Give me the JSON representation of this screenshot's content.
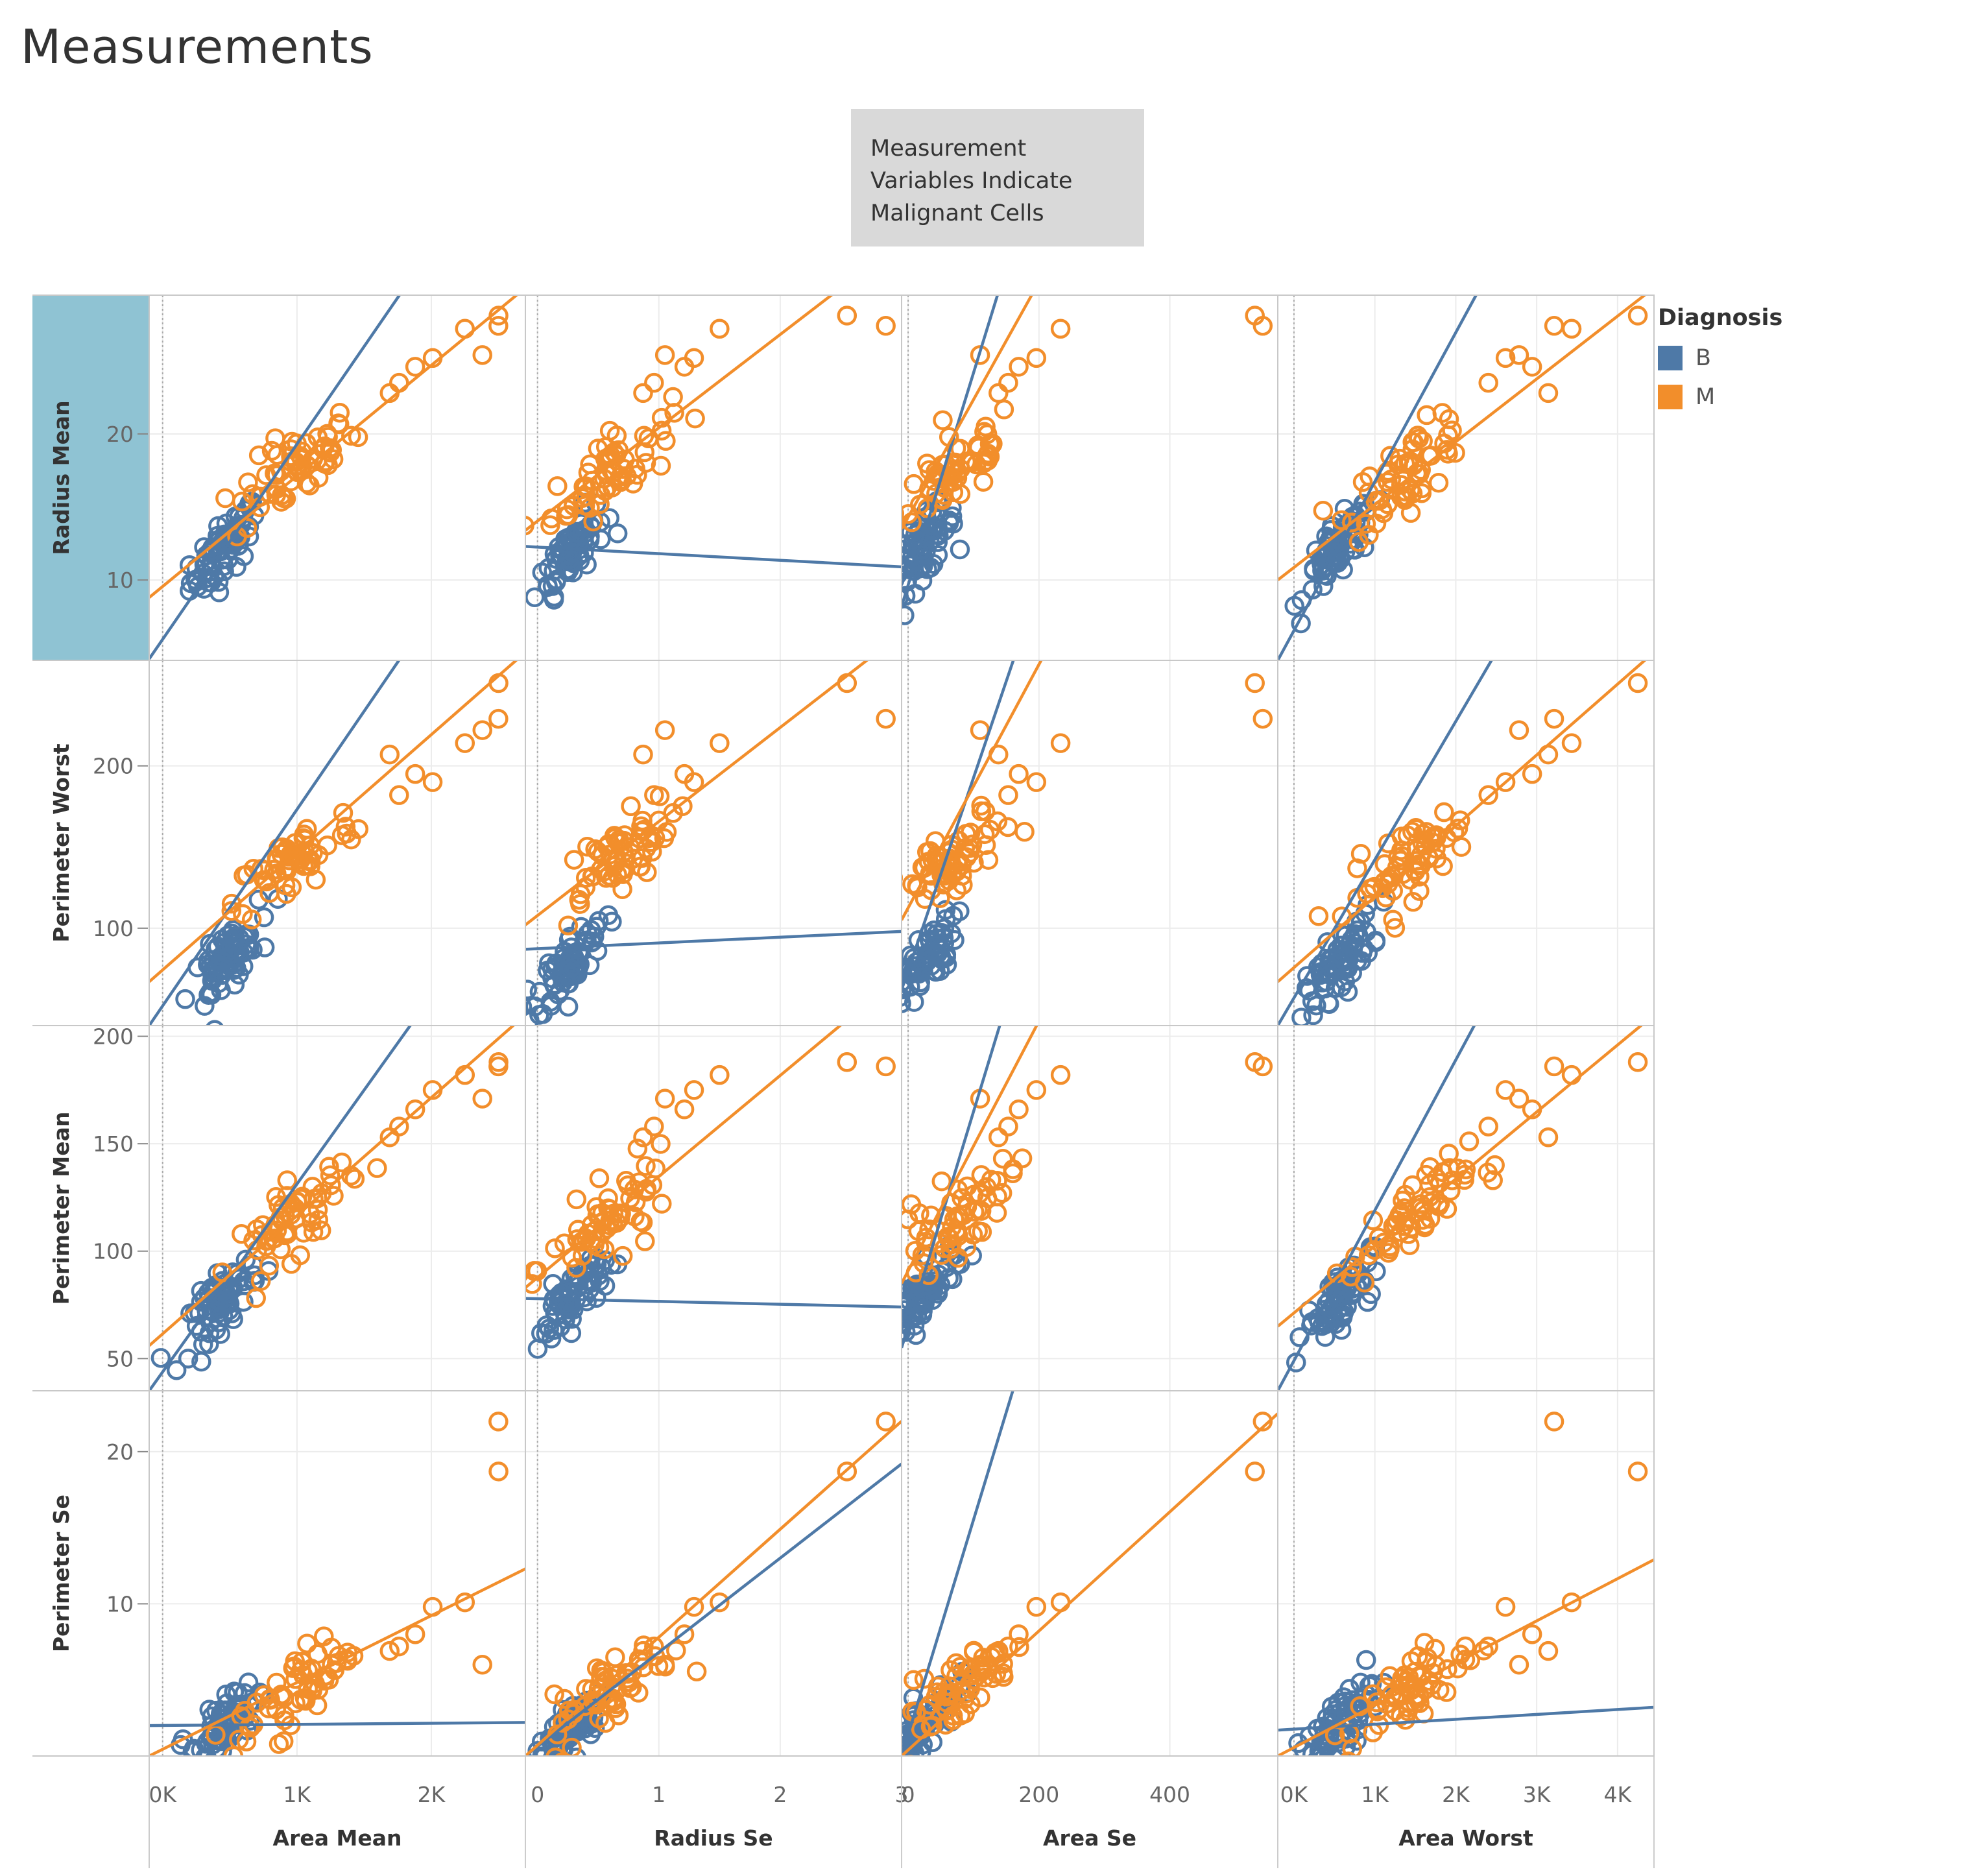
{
  "page": {
    "title": "Measurements"
  },
  "annotation": {
    "text_lines": [
      "Measurement",
      "Variables Indicate",
      "Malignant Cells"
    ]
  },
  "legend": {
    "title": "Diagnosis",
    "items": [
      {
        "label": "B",
        "color": "#4e79a7"
      },
      {
        "label": "M",
        "color": "#f28e2b"
      }
    ]
  },
  "colors": {
    "B": "#4e79a7",
    "M": "#f28e2b",
    "row_header_highlight": "#8fc3d3"
  },
  "chart_data": {
    "type": "scatter",
    "columns": [
      {
        "label": "Area Mean",
        "range": [
          -100,
          2700
        ],
        "ticks": [
          0,
          1000,
          2000
        ],
        "tick_labels": [
          "0K",
          "1K",
          "2K"
        ],
        "zero_line": 0
      },
      {
        "label": "Radius Se",
        "range": [
          -0.1,
          3.0
        ],
        "ticks": [
          0,
          1,
          2,
          3
        ],
        "tick_labels": [
          "0",
          "1",
          "2",
          "3"
        ],
        "zero_line": 0
      },
      {
        "label": "Area Se",
        "range": [
          -10,
          565
        ],
        "ticks": [
          0,
          200,
          400
        ],
        "tick_labels": [
          "0",
          "200",
          "400"
        ],
        "zero_line": 0
      },
      {
        "label": "Area Worst",
        "range": [
          -200,
          4450
        ],
        "ticks": [
          0,
          1000,
          2000,
          3000,
          4000
        ],
        "tick_labels": [
          "0K",
          "1K",
          "2K",
          "3K",
          "4K"
        ],
        "zero_line": 0
      }
    ],
    "rows": [
      {
        "label": "Radius Mean",
        "range": [
          4.5,
          29.5
        ],
        "ticks": [
          10,
          20
        ],
        "tick_labels": [
          "10",
          "20"
        ],
        "highlighted": true
      },
      {
        "label": "Perimeter Worst",
        "range": [
          40,
          265
        ],
        "ticks": [
          100,
          200
        ],
        "tick_labels": [
          "100",
          "200"
        ]
      },
      {
        "label": "Perimeter Mean",
        "range": [
          35,
          205
        ],
        "ticks": [
          50,
          100,
          150,
          200
        ],
        "tick_labels": [
          "50",
          "100",
          "150",
          "200"
        ]
      },
      {
        "label": "Perimeter Se",
        "range": [
          0,
          24
        ],
        "ticks": [
          10,
          20
        ],
        "tick_labels": [
          "10",
          "20"
        ]
      }
    ],
    "series_centers": {
      "B": {
        "Area Mean": 460,
        "Radius Se": 0.28,
        "Area Se": 21,
        "Area Worst": 560,
        "Radius Mean": 12.1,
        "Perimeter Worst": 79,
        "Perimeter Mean": 78,
        "Perimeter Se": 2.0
      },
      "M": {
        "Area Mean": 980,
        "Radius Se": 0.61,
        "Area Se": 73,
        "Area Worst": 1420,
        "Radius Mean": 17.5,
        "Perimeter Worst": 141,
        "Perimeter Mean": 115,
        "Perimeter Se": 4.3
      }
    },
    "trend_lines": [
      {
        "series": "B",
        "x": "Area Mean",
        "y": "Radius Mean",
        "from": [
          -100,
          4.6
        ],
        "to": [
          1800,
          30
        ]
      },
      {
        "series": "M",
        "x": "Area Mean",
        "y": "Radius Mean",
        "from": [
          -100,
          8.8
        ],
        "to": [
          2700,
          30
        ]
      },
      {
        "series": "B",
        "x": "Radius Se",
        "y": "Radius Mean",
        "from": [
          -0.1,
          12.3
        ],
        "to": [
          3.0,
          10.9
        ]
      },
      {
        "series": "M",
        "x": "Radius Se",
        "y": "Radius Mean",
        "from": [
          -0.1,
          13.4
        ],
        "to": [
          2.5,
          30
        ]
      },
      {
        "series": "B",
        "x": "Area Se",
        "y": "Radius Mean",
        "from": [
          -10,
          8.2
        ],
        "to": [
          140,
          30
        ]
      },
      {
        "series": "M",
        "x": "Area Se",
        "y": "Radius Mean",
        "from": [
          -10,
          13.5
        ],
        "to": [
          195,
          30
        ]
      },
      {
        "series": "B",
        "x": "Area Worst",
        "y": "Radius Mean",
        "from": [
          -200,
          4.5
        ],
        "to": [
          2300,
          30
        ]
      },
      {
        "series": "M",
        "x": "Area Worst",
        "y": "Radius Mean",
        "from": [
          -200,
          10.0
        ],
        "to": [
          4450,
          30
        ]
      },
      {
        "series": "B",
        "x": "Area Mean",
        "y": "Perimeter Worst",
        "from": [
          -100,
          40
        ],
        "to": [
          1800,
          270
        ]
      },
      {
        "series": "M",
        "x": "Area Mean",
        "y": "Perimeter Worst",
        "from": [
          -100,
          67
        ],
        "to": [
          2700,
          270
        ]
      },
      {
        "series": "B",
        "x": "Radius Se",
        "y": "Perimeter Worst",
        "from": [
          -0.1,
          87
        ],
        "to": [
          3.0,
          98
        ]
      },
      {
        "series": "M",
        "x": "Radius Se",
        "y": "Perimeter Worst",
        "from": [
          -0.1,
          102
        ],
        "to": [
          2.8,
          270
        ]
      },
      {
        "series": "B",
        "x": "Area Se",
        "y": "Perimeter Worst",
        "from": [
          -10,
          62
        ],
        "to": [
          165,
          270
        ]
      },
      {
        "series": "M",
        "x": "Area Se",
        "y": "Perimeter Worst",
        "from": [
          -10,
          105
        ],
        "to": [
          210,
          270
        ]
      },
      {
        "series": "B",
        "x": "Area Worst",
        "y": "Perimeter Worst",
        "from": [
          -200,
          40
        ],
        "to": [
          2500,
          270
        ]
      },
      {
        "series": "M",
        "x": "Area Worst",
        "y": "Perimeter Worst",
        "from": [
          -200,
          67
        ],
        "to": [
          4450,
          270
        ]
      },
      {
        "series": "B",
        "x": "Area Mean",
        "y": "Perimeter Mean",
        "from": [
          -100,
          35
        ],
        "to": [
          1900,
          210
        ]
      },
      {
        "series": "M",
        "x": "Area Mean",
        "y": "Perimeter Mean",
        "from": [
          -100,
          56
        ],
        "to": [
          2700,
          210
        ]
      },
      {
        "series": "B",
        "x": "Radius Se",
        "y": "Perimeter Mean",
        "from": [
          -0.1,
          78
        ],
        "to": [
          3.0,
          74
        ]
      },
      {
        "series": "M",
        "x": "Radius Se",
        "y": "Perimeter Mean",
        "from": [
          -0.1,
          83
        ],
        "to": [
          2.6,
          210
        ]
      },
      {
        "series": "B",
        "x": "Area Se",
        "y": "Perimeter Mean",
        "from": [
          -10,
          55
        ],
        "to": [
          145,
          210
        ]
      },
      {
        "series": "M",
        "x": "Area Se",
        "y": "Perimeter Mean",
        "from": [
          -10,
          85
        ],
        "to": [
          205,
          210
        ]
      },
      {
        "series": "B",
        "x": "Area Worst",
        "y": "Perimeter Mean",
        "from": [
          -200,
          35
        ],
        "to": [
          2300,
          210
        ]
      },
      {
        "series": "M",
        "x": "Area Worst",
        "y": "Perimeter Mean",
        "from": [
          -200,
          65
        ],
        "to": [
          4450,
          210
        ]
      },
      {
        "series": "B",
        "x": "Area Mean",
        "y": "Perimeter Se",
        "from": [
          -100,
          2.0
        ],
        "to": [
          2700,
          2.2
        ]
      },
      {
        "series": "M",
        "x": "Area Mean",
        "y": "Perimeter Se",
        "from": [
          -100,
          0.0
        ],
        "to": [
          2700,
          12.3
        ]
      },
      {
        "series": "B",
        "x": "Radius Se",
        "y": "Perimeter Se",
        "from": [
          -0.1,
          0.0
        ],
        "to": [
          3.0,
          19.2
        ]
      },
      {
        "series": "M",
        "x": "Radius Se",
        "y": "Perimeter Se",
        "from": [
          -0.1,
          0.0
        ],
        "to": [
          3.0,
          22.0
        ]
      },
      {
        "series": "B",
        "x": "Area Se",
        "y": "Perimeter Se",
        "from": [
          -10,
          0.0
        ],
        "to": [
          160,
          24.0
        ]
      },
      {
        "series": "M",
        "x": "Area Se",
        "y": "Perimeter Se",
        "from": [
          -10,
          0.0
        ],
        "to": [
          565,
          22.5
        ]
      },
      {
        "series": "B",
        "x": "Area Worst",
        "y": "Perimeter Se",
        "from": [
          -200,
          1.7
        ],
        "to": [
          4450,
          3.2
        ]
      },
      {
        "series": "M",
        "x": "Area Worst",
        "y": "Perimeter Se",
        "from": [
          -200,
          0.0
        ],
        "to": [
          4450,
          12.9
        ]
      }
    ],
    "outliers_M": [
      {
        "Area Mean": 2500,
        "Radius Se": 2.55,
        "Area Se": 530,
        "Area Worst": 4250,
        "Radius Mean": 28.1,
        "Perimeter Worst": 251,
        "Perimeter Mean": 188,
        "Perimeter Se": 18.7
      },
      {
        "Area Mean": 2499,
        "Radius Se": 2.87,
        "Area Se": 542,
        "Area Worst": 3216,
        "Radius Mean": 27.4,
        "Perimeter Worst": 229,
        "Perimeter Mean": 186,
        "Perimeter Se": 21.98
      },
      {
        "Area Mean": 2250,
        "Radius Se": 1.5,
        "Area Se": 233,
        "Area Worst": 3432,
        "Radius Mean": 27.2,
        "Perimeter Worst": 214,
        "Perimeter Mean": 182,
        "Perimeter Se": 10.1
      },
      {
        "Area Mean": 2010,
        "Radius Se": 1.29,
        "Area Se": 196,
        "Area Worst": 2615,
        "Radius Mean": 25.2,
        "Perimeter Worst": 190,
        "Perimeter Mean": 175,
        "Perimeter Se": 9.8
      },
      {
        "Area Mean": 1880,
        "Radius Se": 1.21,
        "Area Se": 169,
        "Area Worst": 2944,
        "Radius Mean": 24.6,
        "Perimeter Worst": 195,
        "Perimeter Mean": 166,
        "Perimeter Se": 8.0
      },
      {
        "Area Mean": 1760,
        "Radius Se": 0.96,
        "Area Se": 153,
        "Area Worst": 2403,
        "Radius Mean": 23.5,
        "Perimeter Worst": 182,
        "Perimeter Mean": 158,
        "Perimeter Se": 7.2
      },
      {
        "Area Mean": 1690,
        "Radius Se": 0.87,
        "Area Se": 138,
        "Area Worst": 3143,
        "Radius Mean": 22.8,
        "Perimeter Worst": 207,
        "Perimeter Mean": 153,
        "Perimeter Se": 6.9
      },
      {
        "Area Mean": 2380,
        "Radius Se": 1.05,
        "Area Se": 110,
        "Area Worst": 2782,
        "Radius Mean": 25.4,
        "Perimeter Worst": 222,
        "Perimeter Mean": 171,
        "Perimeter Se": 6.0
      }
    ]
  }
}
